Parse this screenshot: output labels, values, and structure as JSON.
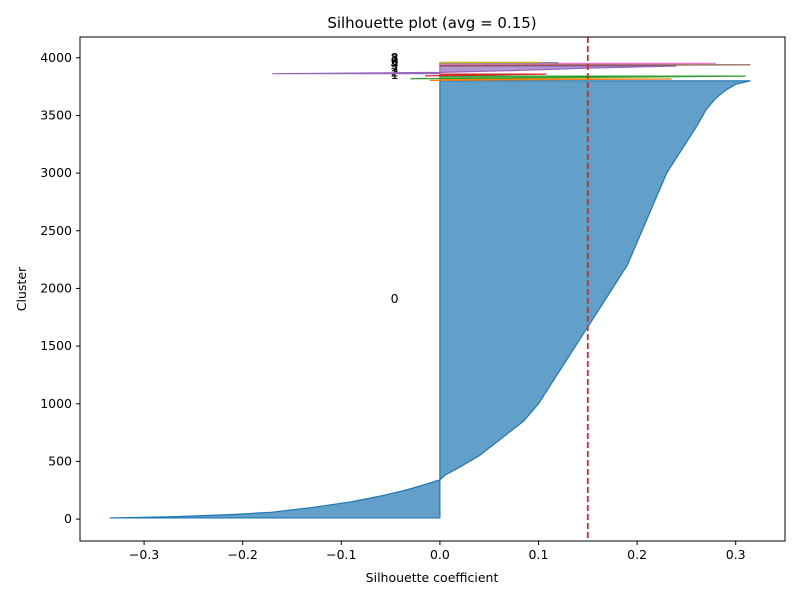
{
  "chart_data": {
    "type": "area",
    "title": "Silhouette plot (avg = 0.15)",
    "xlabel": "Silhouette coefficient",
    "ylabel": "Cluster",
    "xlim": [
      -0.365,
      0.35
    ],
    "ylim": [
      -190,
      4180
    ],
    "xticks": [
      -0.3,
      -0.2,
      -0.1,
      0.0,
      0.1,
      0.2,
      0.3
    ],
    "xtick_labels": [
      "−0.3",
      "−0.2",
      "−0.1",
      "0.0",
      "0.1",
      "0.2",
      "0.3"
    ],
    "yticks": [
      0,
      500,
      1000,
      1500,
      2000,
      2500,
      3000,
      3500,
      4000
    ],
    "yticks_labels": [
      "0",
      "500",
      "1000",
      "1500",
      "2000",
      "2500",
      "3000",
      "3500",
      "4000"
    ],
    "avg_line": {
      "x": 0.15,
      "color": "#d62728",
      "style": "dashed"
    },
    "grid": false,
    "clusters": [
      {
        "label": "0",
        "label_y": 1910,
        "color": "#1f77b4",
        "profile": [
          [
            10,
            -0.335
          ],
          [
            20,
            -0.27
          ],
          [
            40,
            -0.21
          ],
          [
            60,
            -0.17
          ],
          [
            80,
            -0.15
          ],
          [
            100,
            -0.13
          ],
          [
            150,
            -0.09
          ],
          [
            200,
            -0.06
          ],
          [
            250,
            -0.035
          ],
          [
            300,
            -0.015
          ],
          [
            340,
            0.0
          ],
          [
            380,
            0.005
          ],
          [
            450,
            0.02
          ],
          [
            550,
            0.04
          ],
          [
            650,
            0.055
          ],
          [
            750,
            0.07
          ],
          [
            850,
            0.085
          ],
          [
            1000,
            0.1
          ],
          [
            1200,
            0.115
          ],
          [
            1400,
            0.13
          ],
          [
            1600,
            0.145
          ],
          [
            1800,
            0.16
          ],
          [
            2000,
            0.175
          ],
          [
            2200,
            0.19
          ],
          [
            2400,
            0.2
          ],
          [
            2600,
            0.21
          ],
          [
            2800,
            0.22
          ],
          [
            3000,
            0.23
          ],
          [
            3200,
            0.245
          ],
          [
            3400,
            0.26
          ],
          [
            3550,
            0.27
          ],
          [
            3650,
            0.28
          ],
          [
            3720,
            0.29
          ],
          [
            3770,
            0.3
          ],
          [
            3800,
            0.315
          ]
        ]
      },
      {
        "label": "1",
        "label_y": 3850,
        "color": "#ff7f0e",
        "profile": [
          [
            3804,
            -0.01
          ],
          [
            3816,
            0.235
          ]
        ]
      },
      {
        "label": "2",
        "label_y": 3872,
        "color": "#2ca02c",
        "profile": [
          [
            3818,
            -0.03
          ],
          [
            3841,
            0.31
          ]
        ]
      },
      {
        "label": "3",
        "label_y": 3890,
        "color": "#d62728",
        "profile": [
          [
            3843,
            -0.015
          ],
          [
            3858,
            0.108
          ]
        ]
      },
      {
        "label": "4",
        "label_y": 3945,
        "color": "#9467bd",
        "profile": [
          [
            3862,
            -0.17
          ],
          [
            3873,
            0.0
          ],
          [
            3890,
            0.08
          ],
          [
            3910,
            0.15
          ],
          [
            3928,
            0.24
          ]
        ]
      },
      {
        "label": "5",
        "label_y": 3958,
        "color": "#8c564b",
        "profile": [
          [
            3931,
            0.0
          ],
          [
            3939,
            0.315
          ]
        ]
      },
      {
        "label": "6",
        "label_y": 3970,
        "color": "#e377c2",
        "profile": [
          [
            3942,
            0.0
          ],
          [
            3952,
            0.28
          ]
        ]
      },
      {
        "label": "7",
        "label_y": 3984,
        "color": "#7f7f7f",
        "profile": [
          [
            3954,
            0.0
          ],
          [
            3957,
            0.12
          ]
        ]
      },
      {
        "label": "8",
        "label_y": 3998,
        "color": "#bcbd22",
        "profile": [
          [
            3958,
            0.0
          ],
          [
            3960,
            0.1
          ]
        ]
      }
    ]
  }
}
